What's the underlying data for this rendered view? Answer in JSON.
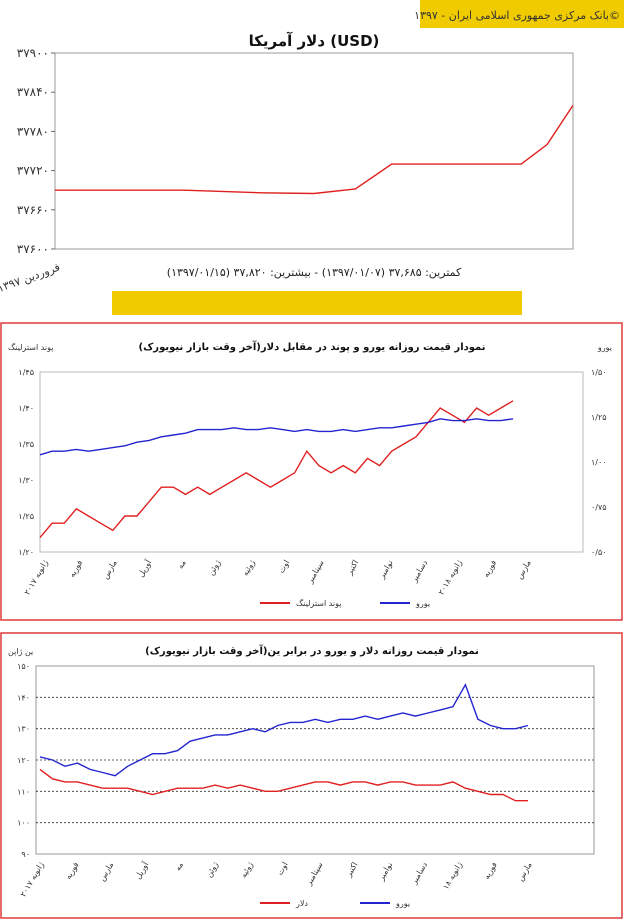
{
  "colors": {
    "accent_yellow": "#f0cb00",
    "red": "#e02020",
    "blue": "#2424d0",
    "frame_red": "#e03a3a"
  },
  "header_source": "بانک مرکزی جمهوری اسلامی ایران - ۱۳۹۷©",
  "chart_data": [
    {
      "type": "line",
      "title": "دلار آمریکا (USD)",
      "x_tick_label": "فروردین ۱۳۹۷",
      "caption": "کمترین: ۳۷,۶۸۵ (۱۳۹۷/۰۱/۰۷) - بیشترین: ۳۷,۸۲۰ (۱۳۹۷/۰۱/۱۵)",
      "y_tick_labels": [
        "۳۷۹۰۰",
        "۳۷۸۴۰",
        "۳۷۷۸۰",
        "۳۷۷۲۰",
        "۳۷۶۶۰",
        "۳۷۶۰۰"
      ],
      "ylim": [
        37600,
        37900
      ],
      "series": [
        {
          "color": "#e02020",
          "x": [
            0,
            0.1,
            0.25,
            0.4,
            0.5,
            0.58,
            0.65,
            0.75,
            0.85,
            0.9,
            0.95,
            1.0
          ],
          "y": [
            37690,
            37690,
            37690,
            37686,
            37685,
            37692,
            37730,
            37730,
            37730,
            37730,
            37760,
            37820
          ]
        }
      ]
    },
    {
      "type": "line",
      "title": "نمودار قیمت روزانه یورو و پوند در مقابل دلار(آخر وقت بازار نیویورک)",
      "y_left_label": "پوند استرلینگ",
      "y_right_label": "یورو",
      "y_left_ticks": [
        "۱/۴۵",
        "۱/۴۰",
        "۱/۳۵",
        "۱/۳۰",
        "۱/۲۵",
        "۱/۲۰"
      ],
      "y_right_ticks": [
        "۱/۵۰",
        "۱/۲۵",
        "۱/۰۰",
        "۰/۷۵",
        "۰/۵۰"
      ],
      "x_ticks": [
        "ژانویه ۲۰۱۷",
        "فوریه",
        "مارس",
        "آوریل",
        "مه",
        "ژوئن",
        "ژوئیه",
        "اوت",
        "سپتامبر",
        "اکتبر",
        "نوامبر",
        "دسامبر",
        "ژانویه ۲۰۱۸",
        "فوریه",
        "مارس"
      ],
      "series": [
        {
          "name": "پوند استرلینگ",
          "color": "#e02020",
          "axis": "left",
          "y": [
            1.22,
            1.24,
            1.24,
            1.26,
            1.25,
            1.24,
            1.23,
            1.25,
            1.25,
            1.27,
            1.29,
            1.29,
            1.28,
            1.29,
            1.28,
            1.29,
            1.3,
            1.31,
            1.3,
            1.29,
            1.3,
            1.31,
            1.34,
            1.32,
            1.31,
            1.32,
            1.31,
            1.33,
            1.32,
            1.34,
            1.35,
            1.36,
            1.38,
            1.4,
            1.39,
            1.38,
            1.4,
            1.39,
            1.4,
            1.41
          ]
        },
        {
          "name": "یورو",
          "color": "#2424d0",
          "axis": "right",
          "y": [
            1.04,
            1.06,
            1.06,
            1.07,
            1.06,
            1.07,
            1.08,
            1.09,
            1.11,
            1.12,
            1.14,
            1.15,
            1.16,
            1.18,
            1.18,
            1.18,
            1.19,
            1.18,
            1.18,
            1.19,
            1.18,
            1.17,
            1.18,
            1.17,
            1.17,
            1.18,
            1.17,
            1.18,
            1.19,
            1.19,
            1.2,
            1.21,
            1.22,
            1.24,
            1.23,
            1.23,
            1.24,
            1.23,
            1.23,
            1.24
          ]
        }
      ]
    },
    {
      "type": "line",
      "title": "نمودار قیمت روزانه دلار و یورو در برابر ین(آخر وقت بازار نیویورک)",
      "y_label": "ین ژاپن",
      "y_ticks": [
        "۱۵۰",
        "۱۴۰",
        "۱۳۰",
        "۱۲۰",
        "۱۱۰",
        "۱۰۰",
        "۹۰"
      ],
      "ylim": [
        90,
        150
      ],
      "x_ticks": [
        "ژانویه ۲۰۱۷",
        "فوریه",
        "مارس",
        "آوریل",
        "مه",
        "ژوئن",
        "ژوئیه",
        "اوت",
        "سپتامبر",
        "اکتبر",
        "نوامبر",
        "دسامبر",
        "ژانویه ۱۸",
        "فوریه",
        "مارس"
      ],
      "series": [
        {
          "name": "دلار",
          "color": "#e02020",
          "y": [
            117,
            114,
            113,
            113,
            112,
            111,
            111,
            111,
            110,
            109,
            110,
            111,
            111,
            111,
            112,
            111,
            112,
            111,
            110,
            110,
            111,
            112,
            113,
            113,
            112,
            113,
            113,
            112,
            113,
            113,
            112,
            112,
            112,
            113,
            111,
            110,
            109,
            109,
            107,
            107
          ]
        },
        {
          "name": "یورو",
          "color": "#2424d0",
          "y": [
            121,
            120,
            118,
            119,
            117,
            116,
            115,
            118,
            120,
            122,
            122,
            123,
            126,
            127,
            128,
            128,
            129,
            130,
            129,
            131,
            132,
            132,
            133,
            132,
            133,
            133,
            134,
            133,
            134,
            135,
            134,
            135,
            136,
            137,
            144,
            133,
            131,
            130,
            130,
            131
          ]
        }
      ]
    }
  ]
}
